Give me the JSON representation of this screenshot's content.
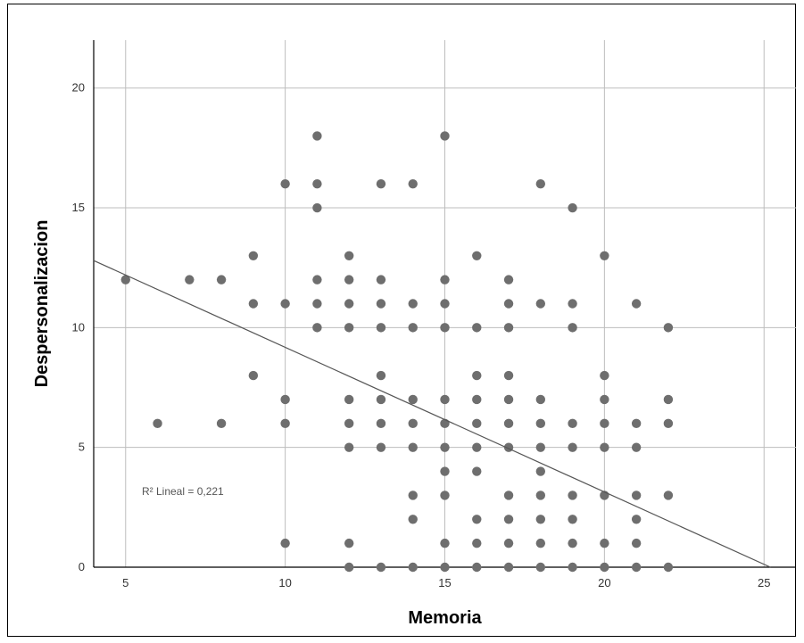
{
  "chart_data": {
    "type": "scatter",
    "xlabel": "Memoria",
    "ylabel": "Despersonalizacion",
    "xlim": [
      4,
      26
    ],
    "ylim": [
      0,
      22
    ],
    "x_ticks": [
      5,
      10,
      15,
      20,
      25
    ],
    "y_ticks": [
      0,
      5,
      10,
      15,
      20
    ],
    "grid": true,
    "annotation": "R² Lineal = 0,221",
    "fit_line": {
      "x1": 4,
      "y1": 12.8,
      "x2": 25.2,
      "y2": 0
    },
    "colors": {
      "point": "#6e6e6e",
      "grid": "#bdbdbd",
      "line": "#555555"
    },
    "points": [
      [
        5,
        12
      ],
      [
        6,
        6
      ],
      [
        7,
        12
      ],
      [
        8,
        12
      ],
      [
        8,
        6
      ],
      [
        9,
        13
      ],
      [
        9,
        11
      ],
      [
        9,
        8
      ],
      [
        10,
        16
      ],
      [
        10,
        11
      ],
      [
        10,
        7
      ],
      [
        10,
        6
      ],
      [
        10,
        1
      ],
      [
        11,
        18
      ],
      [
        11,
        16
      ],
      [
        11,
        15
      ],
      [
        11,
        12
      ],
      [
        11,
        11
      ],
      [
        11,
        10
      ],
      [
        12,
        13
      ],
      [
        12,
        12
      ],
      [
        12,
        11
      ],
      [
        12,
        10
      ],
      [
        12,
        7
      ],
      [
        12,
        6
      ],
      [
        12,
        5
      ],
      [
        12,
        1
      ],
      [
        12,
        0
      ],
      [
        13,
        16
      ],
      [
        13,
        12
      ],
      [
        13,
        11
      ],
      [
        13,
        10
      ],
      [
        13,
        8
      ],
      [
        13,
        7
      ],
      [
        13,
        6
      ],
      [
        13,
        5
      ],
      [
        13,
        0
      ],
      [
        14,
        16
      ],
      [
        14,
        11
      ],
      [
        14,
        10
      ],
      [
        14,
        7
      ],
      [
        14,
        6
      ],
      [
        14,
        5
      ],
      [
        14,
        3
      ],
      [
        14,
        2
      ],
      [
        14,
        0
      ],
      [
        15,
        18
      ],
      [
        15,
        12
      ],
      [
        15,
        11
      ],
      [
        15,
        10
      ],
      [
        15,
        7
      ],
      [
        15,
        6
      ],
      [
        15,
        5
      ],
      [
        15,
        4
      ],
      [
        15,
        3
      ],
      [
        15,
        1
      ],
      [
        15,
        0
      ],
      [
        16,
        13
      ],
      [
        16,
        10
      ],
      [
        16,
        8
      ],
      [
        16,
        7
      ],
      [
        16,
        6
      ],
      [
        16,
        5
      ],
      [
        16,
        4
      ],
      [
        16,
        2
      ],
      [
        16,
        1
      ],
      [
        16,
        0
      ],
      [
        17,
        12
      ],
      [
        17,
        11
      ],
      [
        17,
        10
      ],
      [
        17,
        8
      ],
      [
        17,
        7
      ],
      [
        17,
        6
      ],
      [
        17,
        5
      ],
      [
        17,
        3
      ],
      [
        17,
        2
      ],
      [
        17,
        1
      ],
      [
        17,
        0
      ],
      [
        18,
        16
      ],
      [
        18,
        11
      ],
      [
        18,
        7
      ],
      [
        18,
        6
      ],
      [
        18,
        5
      ],
      [
        18,
        4
      ],
      [
        18,
        3
      ],
      [
        18,
        2
      ],
      [
        18,
        1
      ],
      [
        18,
        0
      ],
      [
        19,
        15
      ],
      [
        19,
        11
      ],
      [
        19,
        10
      ],
      [
        19,
        6
      ],
      [
        19,
        5
      ],
      [
        19,
        3
      ],
      [
        19,
        2
      ],
      [
        19,
        1
      ],
      [
        19,
        0
      ],
      [
        20,
        13
      ],
      [
        20,
        8
      ],
      [
        20,
        7
      ],
      [
        20,
        6
      ],
      [
        20,
        5
      ],
      [
        20,
        3
      ],
      [
        20,
        1
      ],
      [
        20,
        0
      ],
      [
        21,
        11
      ],
      [
        21,
        6
      ],
      [
        21,
        5
      ],
      [
        21,
        3
      ],
      [
        21,
        2
      ],
      [
        21,
        1
      ],
      [
        21,
        0
      ],
      [
        22,
        10
      ],
      [
        22,
        7
      ],
      [
        22,
        6
      ],
      [
        22,
        3
      ],
      [
        22,
        0
      ]
    ]
  }
}
